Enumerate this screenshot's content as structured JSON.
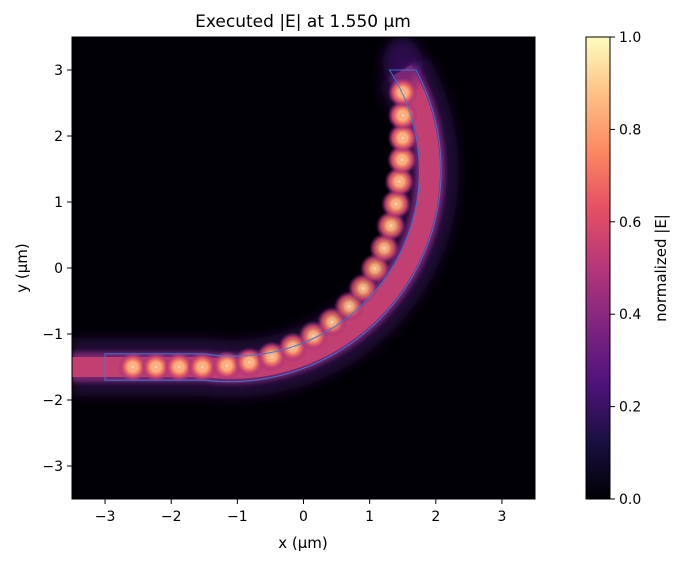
{
  "chart_data": {
    "type": "heatmap",
    "title": "Executed |E| at 1.550 µm",
    "xlabel": "x (µm)",
    "ylabel": "y (µm)",
    "xlim": [
      -3.5,
      3.5
    ],
    "ylim": [
      -3.5,
      3.5
    ],
    "xticks": [
      -3,
      -2,
      -1,
      0,
      1,
      2,
      3
    ],
    "yticks": [
      -3,
      -2,
      -1,
      0,
      1,
      2,
      3
    ],
    "xtick_labels": [
      "−3",
      "−2",
      "−1",
      "0",
      "1",
      "2",
      "3"
    ],
    "ytick_labels": [
      "−3",
      "−2",
      "−1",
      "0",
      "1",
      "2",
      "3"
    ],
    "grid": false,
    "colormap": "magma",
    "colorbar": {
      "label": "normalized |E|",
      "range": [
        0.0,
        1.0
      ],
      "ticks": [
        0.0,
        0.2,
        0.4,
        0.6,
        0.8,
        1.0
      ],
      "tick_labels": [
        "0.0",
        "0.2",
        "0.4",
        "0.6",
        "0.8",
        "1.0"
      ]
    },
    "waveguide": {
      "bend_center": [
        -1.5,
        3.0
      ],
      "bend_radius": 3.0,
      "straight_start_x": -3.0,
      "straight_end_x": -1.5,
      "straight_y": -1.5,
      "width": 0.4,
      "outline_color": "#3a7bd5"
    },
    "field_hotspots": [
      {
        "x": -2.58,
        "y": -1.5,
        "value": 1.0
      },
      {
        "x": -2.23,
        "y": -1.5,
        "value": 1.0
      },
      {
        "x": -1.88,
        "y": -1.5,
        "value": 1.0
      },
      {
        "x": -1.53,
        "y": -1.5,
        "value": 1.0
      },
      {
        "x": -1.16,
        "y": -1.48,
        "value": 0.97
      },
      {
        "x": -0.82,
        "y": -1.43,
        "value": 0.95
      },
      {
        "x": -0.48,
        "y": -1.34,
        "value": 0.93
      },
      {
        "x": -0.16,
        "y": -1.2,
        "value": 0.9
      },
      {
        "x": 0.15,
        "y": -1.03,
        "value": 0.88
      },
      {
        "x": 0.43,
        "y": -0.82,
        "value": 0.86
      },
      {
        "x": 0.69,
        "y": -0.58,
        "value": 0.85
      },
      {
        "x": 0.9,
        "y": -0.31,
        "value": 0.85
      },
      {
        "x": 1.08,
        "y": -0.01,
        "value": 0.86
      },
      {
        "x": 1.22,
        "y": 0.3,
        "value": 0.88
      },
      {
        "x": 1.32,
        "y": 0.64,
        "value": 0.9
      },
      {
        "x": 1.4,
        "y": 0.97,
        "value": 0.93
      },
      {
        "x": 1.45,
        "y": 1.31,
        "value": 0.95
      },
      {
        "x": 1.49,
        "y": 1.64,
        "value": 0.97
      },
      {
        "x": 1.5,
        "y": 1.97,
        "value": 0.98
      },
      {
        "x": 1.5,
        "y": 2.31,
        "value": 1.0
      },
      {
        "x": 1.5,
        "y": 2.66,
        "value": 1.0
      }
    ]
  }
}
